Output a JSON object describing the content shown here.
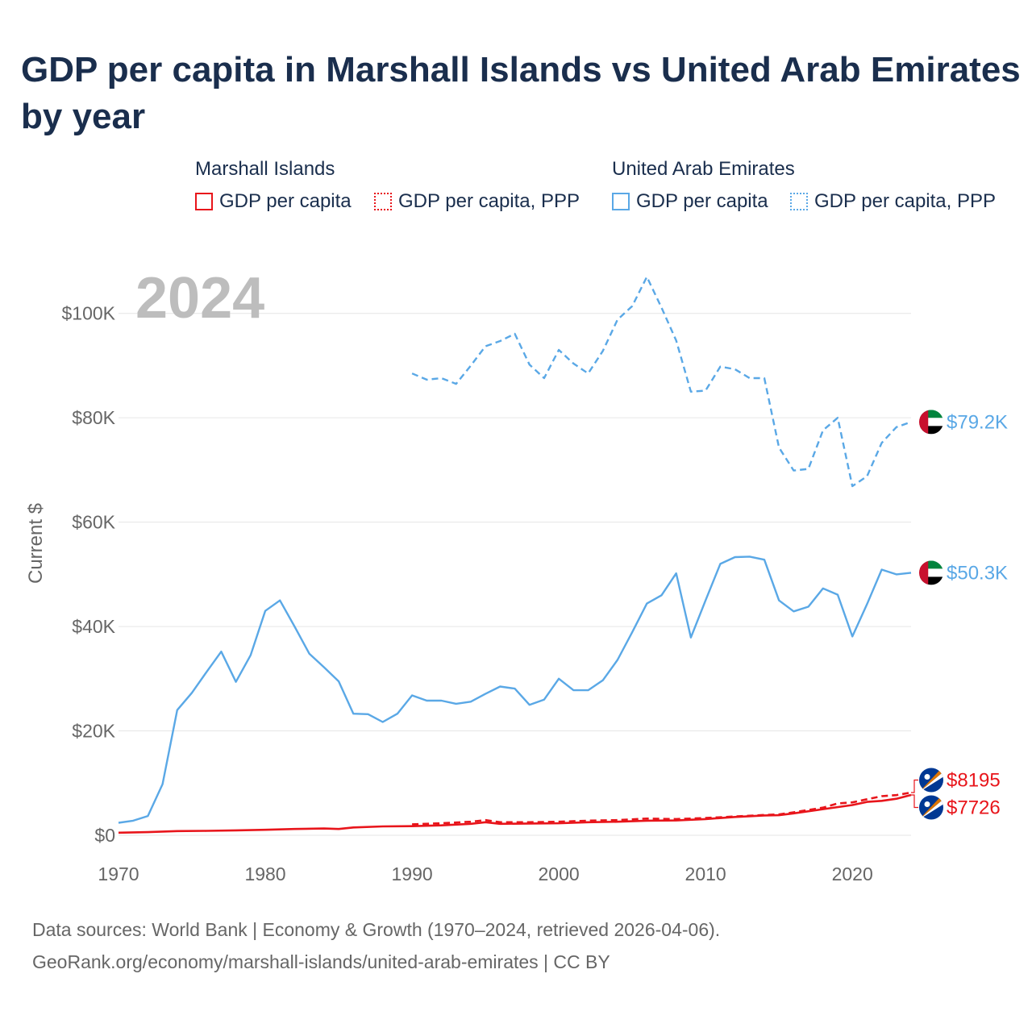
{
  "page": {
    "title": "GDP per capita in Marshall Islands vs United Arab Emirates by year",
    "source_line1": "Data sources: World Bank | Economy & Growth (1970–2024, retrieved 2026-04-06).",
    "source_line2": "GeoRank.org/economy/marshall-islands/united-arab-emirates | CC BY"
  },
  "legend": {
    "groups": [
      {
        "country": "Marshall Islands",
        "color": "#e8151b",
        "items": [
          {
            "label": "GDP per capita",
            "style": "solid"
          },
          {
            "label": "GDP per capita, PPP",
            "style": "dotted"
          }
        ]
      },
      {
        "country": "United Arab Emirates",
        "color": "#5aa8e6",
        "items": [
          {
            "label": "GDP per capita",
            "style": "solid"
          },
          {
            "label": "GDP per capita, PPP",
            "style": "dotted"
          }
        ]
      }
    ]
  },
  "colors": {
    "marshall": "#e8151b",
    "uae": "#5aa8e6",
    "axis_text": "#666666",
    "grid": "#e6e6e6",
    "year_watermark": "#bdbdbd"
  },
  "chart_data": {
    "type": "line",
    "title": "GDP per capita in Marshall Islands vs United Arab Emirates by year",
    "ylabel": "Current $",
    "xlabel": "",
    "year_label": "2024",
    "xlim": [
      1970,
      2024
    ],
    "ylim": [
      0,
      110000
    ],
    "x_ticks": [
      1970,
      1980,
      1990,
      2000,
      2010,
      2020
    ],
    "y_ticks": [
      0,
      20000,
      40000,
      60000,
      80000,
      100000
    ],
    "y_tick_labels": [
      "$0",
      "$20K",
      "$40K",
      "$60K",
      "$80K",
      "$100K"
    ],
    "series": [
      {
        "name": "United Arab Emirates — GDP per capita",
        "country": "uae",
        "style": "solid",
        "end_label": "$50.3K",
        "x": [
          1970,
          1971,
          1972,
          1973,
          1974,
          1975,
          1976,
          1977,
          1978,
          1979,
          1980,
          1981,
          1982,
          1983,
          1984,
          1985,
          1986,
          1987,
          1988,
          1989,
          1990,
          1991,
          1992,
          1993,
          1994,
          1995,
          1996,
          1997,
          1998,
          1999,
          2000,
          2001,
          2002,
          2003,
          2004,
          2005,
          2006,
          2007,
          2008,
          2009,
          2010,
          2011,
          2012,
          2013,
          2014,
          2015,
          2016,
          2017,
          2018,
          2019,
          2020,
          2021,
          2022,
          2023,
          2024
        ],
        "y": [
          2400,
          2800,
          3700,
          9800,
          24000,
          27300,
          31300,
          35200,
          29400,
          34500,
          43000,
          45000,
          40000,
          34800,
          32200,
          29500,
          23300,
          23200,
          21700,
          23300,
          26800,
          25800,
          25800,
          25200,
          25600,
          27100,
          28500,
          28100,
          25000,
          26000,
          30000,
          27800,
          27800,
          29700,
          33600,
          38900,
          44400,
          46000,
          50200,
          37900,
          45000,
          52000,
          53300,
          53400,
          52800,
          45000,
          42900,
          43800,
          47300,
          46100,
          38100,
          44300,
          50900,
          50000,
          50300
        ]
      },
      {
        "name": "United Arab Emirates — GDP per capita, PPP",
        "country": "uae",
        "style": "dashed",
        "end_label": "$79.2K",
        "x": [
          1990,
          1991,
          1992,
          1993,
          1994,
          1995,
          1996,
          1997,
          1998,
          1999,
          2000,
          2001,
          2002,
          2003,
          2004,
          2005,
          2006,
          2007,
          2008,
          2009,
          2010,
          2011,
          2012,
          2013,
          2014,
          2015,
          2016,
          2017,
          2018,
          2019,
          2020,
          2021,
          2022,
          2023,
          2024
        ],
        "y": [
          88500,
          87300,
          87600,
          86500,
          90000,
          93700,
          94700,
          96100,
          90200,
          87600,
          93000,
          90400,
          88500,
          92800,
          98800,
          101400,
          107000,
          101100,
          94800,
          85000,
          85200,
          89800,
          89300,
          87600,
          87600,
          74300,
          69900,
          70200,
          77600,
          80000,
          66900,
          68800,
          75200,
          78200,
          79200
        ]
      },
      {
        "name": "Marshall Islands — GDP per capita",
        "country": "marshall",
        "style": "solid",
        "end_label": "$7726",
        "x": [
          1970,
          1972,
          1974,
          1976,
          1978,
          1980,
          1982,
          1984,
          1985,
          1986,
          1988,
          1990,
          1992,
          1994,
          1995,
          1996,
          1998,
          2000,
          2002,
          2004,
          2006,
          2008,
          2010,
          2012,
          2014,
          2015,
          2016,
          2018,
          2020,
          2021,
          2022,
          2023,
          2024
        ],
        "y": [
          500,
          600,
          800,
          850,
          950,
          1050,
          1200,
          1300,
          1200,
          1500,
          1700,
          1750,
          1900,
          2200,
          2500,
          2200,
          2250,
          2300,
          2500,
          2600,
          2800,
          2850,
          3100,
          3500,
          3800,
          3850,
          4200,
          5000,
          5800,
          6400,
          6600,
          7000,
          7726
        ]
      },
      {
        "name": "Marshall Islands — GDP per capita, PPP",
        "country": "marshall",
        "style": "dashed",
        "end_label": "$8195",
        "x": [
          1990,
          1992,
          1994,
          1995,
          1996,
          1998,
          2000,
          2002,
          2004,
          2006,
          2008,
          2010,
          2012,
          2014,
          2015,
          2016,
          2018,
          2019,
          2020,
          2021,
          2022,
          2023,
          2024
        ],
        "y": [
          2100,
          2300,
          2600,
          2900,
          2500,
          2500,
          2600,
          2800,
          2900,
          3200,
          3100,
          3300,
          3600,
          3900,
          4000,
          4400,
          5300,
          6100,
          6300,
          6900,
          7500,
          7700,
          8195
        ]
      }
    ]
  }
}
